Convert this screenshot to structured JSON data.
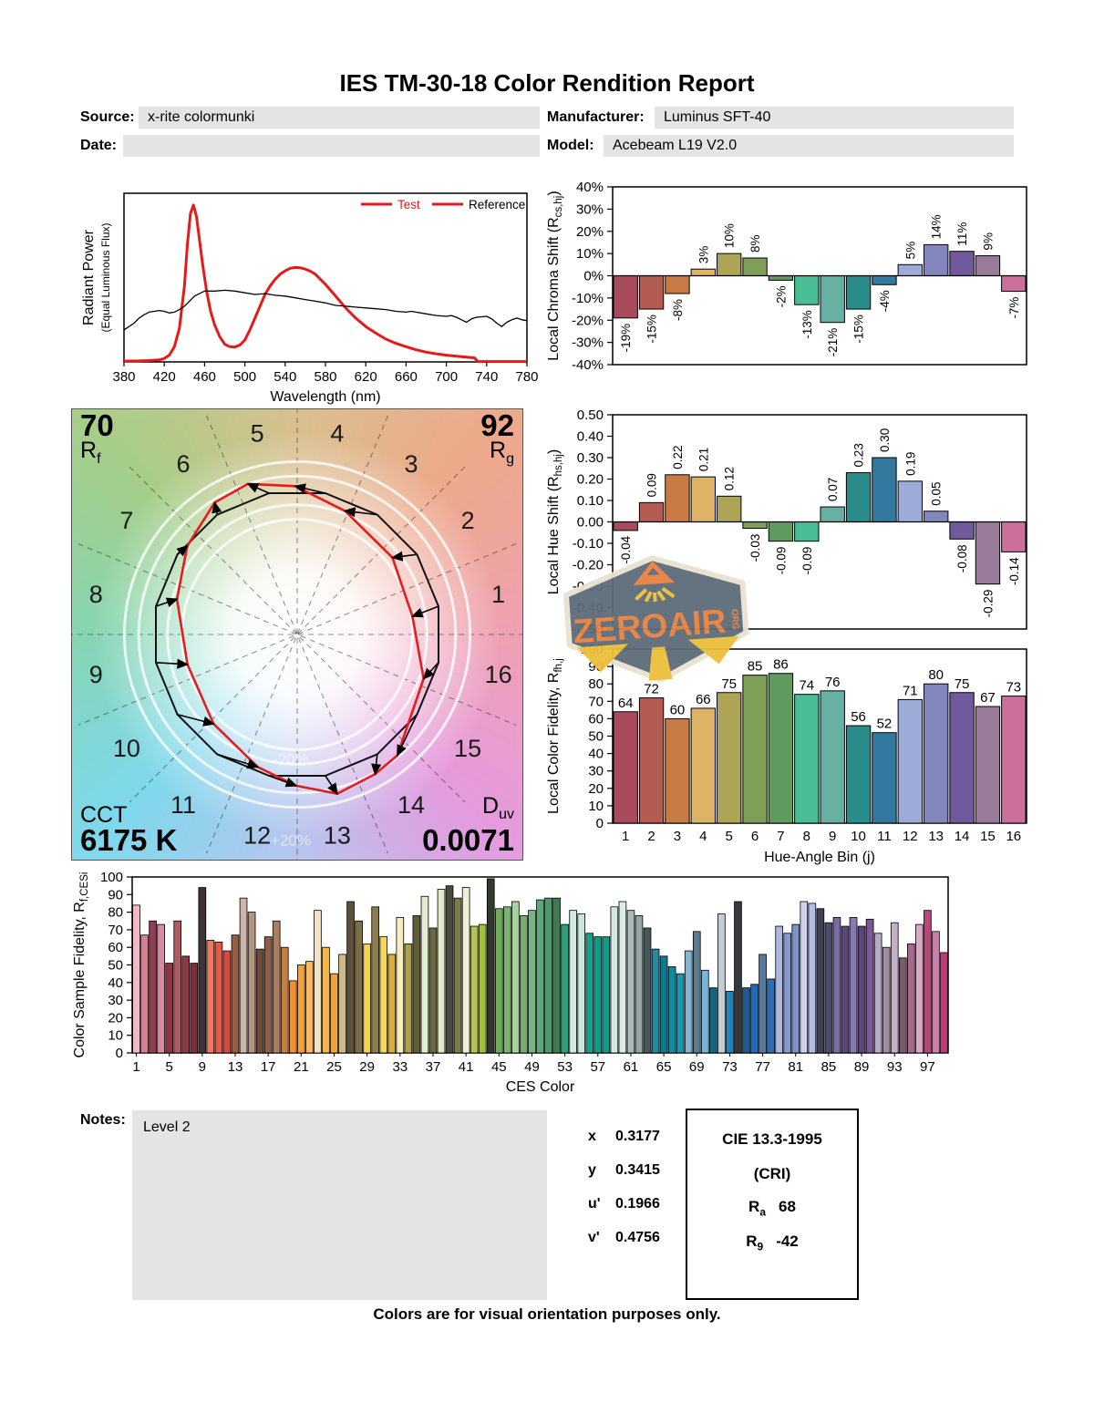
{
  "title": "IES TM-30-18 Color Rendition Report",
  "meta": {
    "source_label": "Source:",
    "source_value": "x-rite colormunki",
    "manufacturer_label": "Manufacturer:",
    "manufacturer_value": "Luminus SFT-40",
    "date_label": "Date:",
    "date_value": "",
    "model_label": "Model:",
    "model_value": "Acebeam L19 V2.0"
  },
  "notes": {
    "label": "Notes:",
    "value": "Level 2"
  },
  "chromaticity": {
    "rows": [
      [
        "x",
        "0.3177"
      ],
      [
        "y",
        "0.3415"
      ],
      [
        "u'",
        "0.1966"
      ],
      [
        "v'",
        "0.4756"
      ]
    ]
  },
  "cri_box": {
    "title": "CIE 13.3-1995",
    "subtitle": "(CRI)",
    "ra_sym": "R",
    "ra_sub": "a",
    "ra_value": "68",
    "r9_sym": "R",
    "r9_sub": "9",
    "r9_value": "-42"
  },
  "footer": "Colors are for visual orientation purposes only.",
  "watermark": {
    "text": "ZEROAIR",
    "suffix": "ORG"
  },
  "hue_bin_colors": [
    "#a84b5c",
    "#b35c51",
    "#c97b45",
    "#ddb366",
    "#ada455",
    "#7f9e58",
    "#5f9a5e",
    "#49bd94",
    "#68b0a4",
    "#2b8c8c",
    "#33789e",
    "#9dabd9",
    "#8286bd",
    "#715a9c",
    "#997b99",
    "#cc6f9d"
  ],
  "cvg": {
    "rf_value": "70",
    "rf_sym": "R",
    "rf_sub": "f",
    "rg_value": "92",
    "rg_sym": "R",
    "rg_sub": "g",
    "cct_label": "CCT",
    "cct_value": "6175 K",
    "duv_sym": "D",
    "duv_sub": "uv",
    "duv_value": "0.0071",
    "plus20_label": "+20%",
    "minus20_label": "-20%",
    "bin_labels": [
      "1",
      "2",
      "3",
      "4",
      "5",
      "6",
      "7",
      "8",
      "9",
      "10",
      "11",
      "12",
      "13",
      "14",
      "15",
      "16"
    ]
  },
  "chart_data": [
    {
      "id": "spd",
      "type": "line",
      "xlabel": "Wavelength (nm)",
      "ylabel_line1": "Radiant Power",
      "ylabel_line2": "(Equal Luminous Flux)",
      "xlim": [
        380,
        780
      ],
      "xticks": [
        380,
        420,
        460,
        500,
        540,
        580,
        620,
        660,
        700,
        740,
        780
      ],
      "legend": [
        {
          "label": "Test",
          "line_color": "#e81919",
          "text_color": "#e81919"
        },
        {
          "label": "Reference",
          "line_color": "#e81919",
          "text_color": "#000000"
        }
      ],
      "series": [
        {
          "name": "Test",
          "color": "#e81919",
          "width": 3,
          "x": [
            380,
            395,
            405,
            415,
            420,
            425,
            430,
            435,
            440,
            443,
            446,
            449,
            452,
            455,
            458,
            462,
            466,
            470,
            475,
            480,
            485,
            490,
            495,
            500,
            505,
            510,
            515,
            520,
            525,
            530,
            535,
            540,
            545,
            550,
            555,
            560,
            565,
            570,
            575,
            580,
            585,
            590,
            595,
            600,
            610,
            620,
            630,
            640,
            650,
            660,
            670,
            680,
            690,
            700,
            710,
            720,
            728,
            731,
            780
          ],
          "y": [
            0.005,
            0.006,
            0.008,
            0.012,
            0.02,
            0.04,
            0.09,
            0.2,
            0.45,
            0.7,
            0.88,
            0.93,
            0.86,
            0.72,
            0.58,
            0.42,
            0.3,
            0.22,
            0.15,
            0.105,
            0.09,
            0.088,
            0.1,
            0.13,
            0.19,
            0.26,
            0.33,
            0.4,
            0.45,
            0.49,
            0.52,
            0.54,
            0.555,
            0.56,
            0.558,
            0.55,
            0.538,
            0.52,
            0.49,
            0.46,
            0.425,
            0.39,
            0.355,
            0.32,
            0.26,
            0.21,
            0.17,
            0.135,
            0.11,
            0.09,
            0.072,
            0.058,
            0.048,
            0.04,
            0.034,
            0.028,
            0.024,
            0.002,
            0.002
          ]
        },
        {
          "name": "Reference",
          "color": "#000000",
          "width": 1.3,
          "x": [
            380,
            385,
            390,
            395,
            400,
            405,
            410,
            415,
            420,
            425,
            430,
            435,
            440,
            445,
            450,
            460,
            470,
            480,
            490,
            500,
            510,
            520,
            530,
            540,
            550,
            560,
            570,
            580,
            590,
            600,
            610,
            620,
            630,
            640,
            650,
            660,
            665,
            670,
            680,
            690,
            700,
            705,
            710,
            715,
            720,
            725,
            730,
            740,
            745,
            750,
            755,
            760,
            765,
            770,
            775,
            780
          ],
          "y": [
            0.19,
            0.21,
            0.23,
            0.26,
            0.28,
            0.295,
            0.3,
            0.305,
            0.3,
            0.29,
            0.295,
            0.31,
            0.33,
            0.36,
            0.39,
            0.42,
            0.42,
            0.425,
            0.42,
            0.41,
            0.4,
            0.405,
            0.395,
            0.39,
            0.38,
            0.37,
            0.36,
            0.35,
            0.335,
            0.33,
            0.325,
            0.32,
            0.315,
            0.31,
            0.3,
            0.295,
            0.3,
            0.295,
            0.285,
            0.275,
            0.27,
            0.275,
            0.265,
            0.25,
            0.235,
            0.255,
            0.265,
            0.27,
            0.255,
            0.23,
            0.21,
            0.235,
            0.25,
            0.26,
            0.25,
            0.245
          ]
        }
      ]
    },
    {
      "id": "chroma_shift",
      "type": "bar",
      "ylabel": {
        "pre": "Local Chroma Shift (R",
        "sub": "cs,hj",
        "post": ")"
      },
      "ylim": [
        -40,
        40
      ],
      "ytick_step": 10,
      "yticklabels": [
        "40%",
        "30%",
        "20%",
        "10%",
        "0%",
        "-10%",
        "-20%",
        "-30%",
        "-40%"
      ],
      "categories": [
        1,
        2,
        3,
        4,
        5,
        6,
        7,
        8,
        9,
        10,
        11,
        12,
        13,
        14,
        15,
        16
      ],
      "values": [
        -19,
        -15,
        -8,
        3,
        10,
        8,
        -2,
        -13,
        -21,
        -15,
        -4,
        5,
        14,
        11,
        9,
        -7
      ],
      "labels": [
        "-19%",
        "-15%",
        "-8%",
        "3%",
        "10%",
        "8%",
        "-2%",
        "-13%",
        "-21%",
        "-15%",
        "-4%",
        "5%",
        "14%",
        "11%",
        "9%",
        "-7%"
      ]
    },
    {
      "id": "hue_shift",
      "type": "bar",
      "ylabel": {
        "pre": "Local Hue Shift (R",
        "sub": "hs,hj",
        "post": ")"
      },
      "ylim": [
        -0.5,
        0.5
      ],
      "ytick_step": 0.1,
      "yticklabels": [
        "0.50",
        "0.40",
        "0.30",
        "0.20",
        "0.10",
        "0.00",
        "-0.10",
        "-0.20",
        "-0.30",
        "-0.40",
        "-0.50"
      ],
      "categories": [
        1,
        2,
        3,
        4,
        5,
        6,
        7,
        8,
        9,
        10,
        11,
        12,
        13,
        14,
        15,
        16
      ],
      "values": [
        -0.04,
        0.09,
        0.22,
        0.21,
        0.12,
        -0.03,
        -0.09,
        -0.09,
        0.07,
        0.23,
        0.3,
        0.19,
        0.05,
        -0.08,
        -0.29,
        -0.14
      ],
      "labels": [
        "-0.04",
        "0.09",
        "0.22",
        "0.21",
        "0.12",
        "-0.03",
        "-0.09",
        "-0.09",
        "0.07",
        "0.23",
        "0.30",
        "0.19",
        "0.05",
        "-0.08",
        "-0.29",
        "-0.14"
      ]
    },
    {
      "id": "fidelity16",
      "type": "bar",
      "ylabel": {
        "pre": "Local Color Fidelity, R",
        "sub": "fh,j",
        "post": ""
      },
      "xlabel": "Hue-Angle Bin (j)",
      "ylim": [
        0,
        100
      ],
      "ytick_step": 10,
      "yticklabels": [
        "100",
        "90",
        "80",
        "70",
        "60",
        "50",
        "40",
        "30",
        "20",
        "10",
        "0"
      ],
      "categories": [
        1,
        2,
        3,
        4,
        5,
        6,
        7,
        8,
        9,
        10,
        11,
        12,
        13,
        14,
        15,
        16
      ],
      "values": [
        64,
        72,
        60,
        66,
        75,
        85,
        86,
        74,
        76,
        56,
        52,
        71,
        80,
        75,
        67,
        73
      ]
    },
    {
      "id": "ces",
      "type": "bar",
      "ylabel": {
        "pre": "Color Sample Fidelity, R",
        "sub": "f,CESi",
        "post": ""
      },
      "xlabel": "CES Color",
      "ylim": [
        0,
        100
      ],
      "ytick_step": 10,
      "yticklabels": [
        "100",
        "90",
        "80",
        "70",
        "60",
        "50",
        "40",
        "30",
        "20",
        "10",
        "0"
      ],
      "xticks": [
        1,
        5,
        9,
        13,
        17,
        21,
        25,
        29,
        33,
        37,
        41,
        45,
        49,
        53,
        57,
        61,
        65,
        69,
        73,
        77,
        81,
        85,
        89,
        93,
        97
      ],
      "values": [
        84,
        67,
        75,
        73,
        51,
        75,
        55,
        51,
        94,
        64,
        63,
        58,
        67,
        88,
        80,
        59,
        66,
        75,
        60,
        41,
        50,
        52,
        81,
        60,
        45,
        56,
        86,
        75,
        62,
        83,
        66,
        56,
        77,
        62,
        78,
        89,
        71,
        93,
        95,
        88,
        94,
        72,
        73,
        99,
        82,
        83,
        86,
        78,
        81,
        87,
        88,
        88,
        73,
        81,
        79,
        68,
        66,
        66,
        83,
        86,
        81,
        78,
        71,
        59,
        55,
        49,
        45,
        58,
        69,
        47,
        37,
        79,
        35,
        86,
        37,
        39,
        56,
        42,
        72,
        68,
        73,
        86,
        85,
        82,
        74,
        77,
        72,
        77,
        72,
        76,
        68,
        60,
        74,
        54,
        62,
        73,
        81,
        69,
        57
      ],
      "colors": [
        "#f1b9c4",
        "#da7f8e",
        "#8e3f52",
        "#d88ba2",
        "#8f3542",
        "#b25a62",
        "#8a3a46",
        "#7d2f3c",
        "#3c3437",
        "#ef7a64",
        "#e25b4b",
        "#d94a3e",
        "#9b5d43",
        "#ccb5a9",
        "#b49583",
        "#70493a",
        "#8d5f49",
        "#aa7e60",
        "#ca7e3e",
        "#f09033",
        "#f4a03c",
        "#f7ba60",
        "#f2e3c6",
        "#f3b74b",
        "#f5a02f",
        "#cdb98a",
        "#5e5138",
        "#7b6f47",
        "#f4d44f",
        "#8a7d50",
        "#f6d853",
        "#d5ae3b",
        "#f7eebc",
        "#ada04e",
        "#605d39",
        "#e4ecd1",
        "#6c6941",
        "#dfe8c7",
        "#4a4a41",
        "#7c7c4b",
        "#eef0d7",
        "#b5c44f",
        "#9fc03f",
        "#323a2f",
        "#70aa5b",
        "#7db371",
        "#a9d2a1",
        "#75ad75",
        "#7ab285",
        "#5ba879",
        "#4e9a69",
        "#3e7b51",
        "#2ca17b",
        "#d0e8e1",
        "#c9e6dd",
        "#18a18a",
        "#109c88",
        "#109c8d",
        "#d4e8e3",
        "#dcebe7",
        "#aabcb5",
        "#94a8a3",
        "#48575b",
        "#28899d",
        "#0d7a8d",
        "#0f8ba1",
        "#1a97b5",
        "#87b5cd",
        "#5d7b8f",
        "#79b5d9",
        "#0d6987",
        "#c3cdd3",
        "#1987c1",
        "#34393f",
        "#1d5b97",
        "#2369b1",
        "#55799f",
        "#2f6db5",
        "#abb9dd",
        "#8599cd",
        "#7d91cd",
        "#cdd3ed",
        "#b5bde5",
        "#3d4151",
        "#4d4d6b",
        "#7b6ba5",
        "#594979",
        "#8979b5",
        "#5b4579",
        "#7b5999",
        "#b5abc5",
        "#a18da1",
        "#c5b1c5",
        "#7b5971",
        "#a9698d",
        "#d9a9c5",
        "#b14979",
        "#cd7fa9",
        "#b53d79"
      ]
    }
  ]
}
